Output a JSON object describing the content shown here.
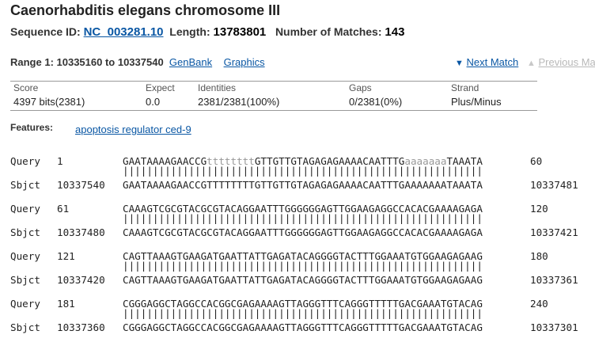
{
  "header": {
    "title": "Caenorhabditis elegans chromosome III",
    "seq_id_label": "Sequence ID:",
    "seq_id": "NC_003281.10",
    "length_label": "Length:",
    "length": "13783801",
    "matches_label": "Number of Matches:",
    "matches": "143"
  },
  "range": {
    "label": "Range 1: 10335160 to 10337540",
    "genbank": "GenBank",
    "graphics": "Graphics",
    "next_match": "Next Match",
    "previous_match": "Previous Ma"
  },
  "stats": {
    "score_label": "Score",
    "score": "4397 bits(2381)",
    "expect_label": "Expect",
    "expect": "0.0",
    "identities_label": "Identities",
    "identities": "2381/2381(100%)",
    "gaps_label": "Gaps",
    "gaps": "0/2381(0%)",
    "strand_label": "Strand",
    "strand": "Plus/Minus"
  },
  "features": {
    "label": "Features:",
    "link": "apoptosis regulator ced-9"
  },
  "alignment": [
    {
      "q_label": "Query",
      "q_start": "1",
      "q_seq": [
        "GAATAAAAGAACCG",
        "tttttttt",
        "GTTGTTGTAGAGAGAAAACAATTTG",
        "aaaaaaa",
        "TAAATA"
      ],
      "q_end": "60",
      "match": "||||||||||||||||||||||||||||||||||||||||||||||||||||||||||||",
      "s_label": "Sbjct",
      "s_start": "10337540",
      "s_seq": "GAATAAAAGAACCGTTTTTTTTGTTGTTGTAGAGAGAAAACAATTTGAAAAAAATAAATA",
      "s_end": "10337481"
    },
    {
      "q_label": "Query",
      "q_start": "61",
      "q_seq": [
        "CAAAGTCGCGTACGCGTACAGGAATTTGGGGGGAGTTGGAAGAGGCCACACGAAAAGAGA"
      ],
      "q_end": "120",
      "match": "||||||||||||||||||||||||||||||||||||||||||||||||||||||||||||",
      "s_label": "Sbjct",
      "s_start": "10337480",
      "s_seq": "CAAAGTCGCGTACGCGTACAGGAATTTGGGGGGAGTTGGAAGAGGCCACACGAAAAGAGA",
      "s_end": "10337421"
    },
    {
      "q_label": "Query",
      "q_start": "121",
      "q_seq": [
        "CAGTTAAAGTGAAGATGAATTATTGAGATACAGGGGTACTTTGGAAATGTGGAAGAGAAG"
      ],
      "q_end": "180",
      "match": "||||||||||||||||||||||||||||||||||||||||||||||||||||||||||||",
      "s_label": "Sbjct",
      "s_start": "10337420",
      "s_seq": "CAGTTAAAGTGAAGATGAATTATTGAGATACAGGGGTACTTTGGAAATGTGGAAGAGAAG",
      "s_end": "10337361"
    },
    {
      "q_label": "Query",
      "q_start": "181",
      "q_seq": [
        "CGGGAGGCTAGGCCACGGCGAGAAAAGTTAGGGTTTCAGGGTTTTTGACGAAATGTACAG"
      ],
      "q_end": "240",
      "match": "||||||||||||||||||||||||||||||||||||||||||||||||||||||||||||",
      "s_label": "Sbjct",
      "s_start": "10337360",
      "s_seq": "CGGGAGGCTAGGCCACGGCGAGAAAAGTTAGGGTTTCAGGGTTTTTGACGAAATGTACAG",
      "s_end": "10337301"
    }
  ],
  "colors": {
    "link": "#0a57a4",
    "lowercase": "#999999",
    "disabled": "#b8b8b8"
  }
}
